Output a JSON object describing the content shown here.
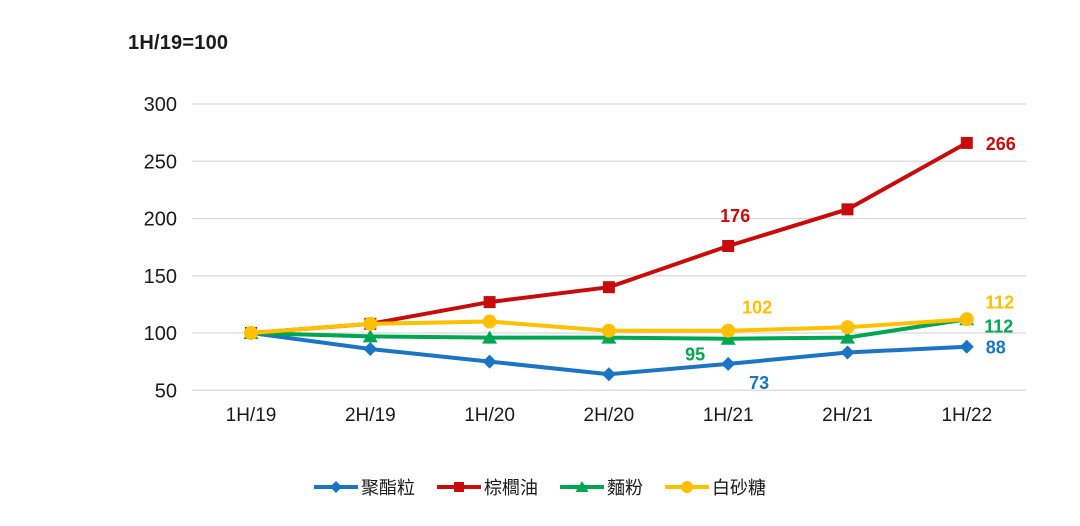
{
  "header": {
    "index_note": "1H/19=100"
  },
  "chart_data": {
    "type": "line",
    "title": "1H/19=100",
    "categories": [
      "1H/19",
      "2H/19",
      "1H/20",
      "2H/20",
      "1H/21",
      "2H/21",
      "1H/22"
    ],
    "yticks": [
      50,
      100,
      150,
      200,
      250,
      300
    ],
    "ylim": [
      38,
      312
    ],
    "grid": true,
    "gridline_color": "#d9d9d9",
    "axis_text_color": "#1a1a1a",
    "legend_position": "bottom",
    "series": [
      {
        "name": "聚酯粒",
        "color": "#1b75c4",
        "marker": "diamond",
        "values": [
          100,
          86,
          75,
          64,
          73,
          83,
          88
        ],
        "point_labels": [
          {
            "i": 4,
            "text": "73",
            "dx": 31,
            "dy": 19
          },
          {
            "i": 6,
            "text": "88",
            "dx": 29,
            "dy": 1
          }
        ]
      },
      {
        "name": "棕櫚油",
        "color": "#c80c0c",
        "marker": "square",
        "values": [
          100,
          108,
          127,
          140,
          176,
          208,
          266
        ],
        "point_labels": [
          {
            "i": 4,
            "text": "176",
            "dx": 7,
            "dy": -30
          },
          {
            "i": 6,
            "text": "266",
            "dx": 34,
            "dy": 1
          }
        ]
      },
      {
        "name": "麵粉",
        "color": "#00a651",
        "marker": "triangle",
        "values": [
          100,
          97,
          96,
          96,
          95,
          96,
          112
        ],
        "point_labels": [
          {
            "i": 4,
            "text": "95",
            "dx": -33,
            "dy": 16
          },
          {
            "i": 6,
            "text": "112",
            "dx": 32,
            "dy": 7
          }
        ]
      },
      {
        "name": "白砂糖",
        "color": "#ffc000",
        "marker": "circle",
        "values": [
          100,
          108,
          110,
          102,
          102,
          105,
          112
        ],
        "point_labels": [
          {
            "i": 4,
            "text": "102",
            "dx": 29,
            "dy": -23
          },
          {
            "i": 6,
            "text": "112",
            "dx": 33,
            "dy": -17
          }
        ]
      }
    ]
  }
}
